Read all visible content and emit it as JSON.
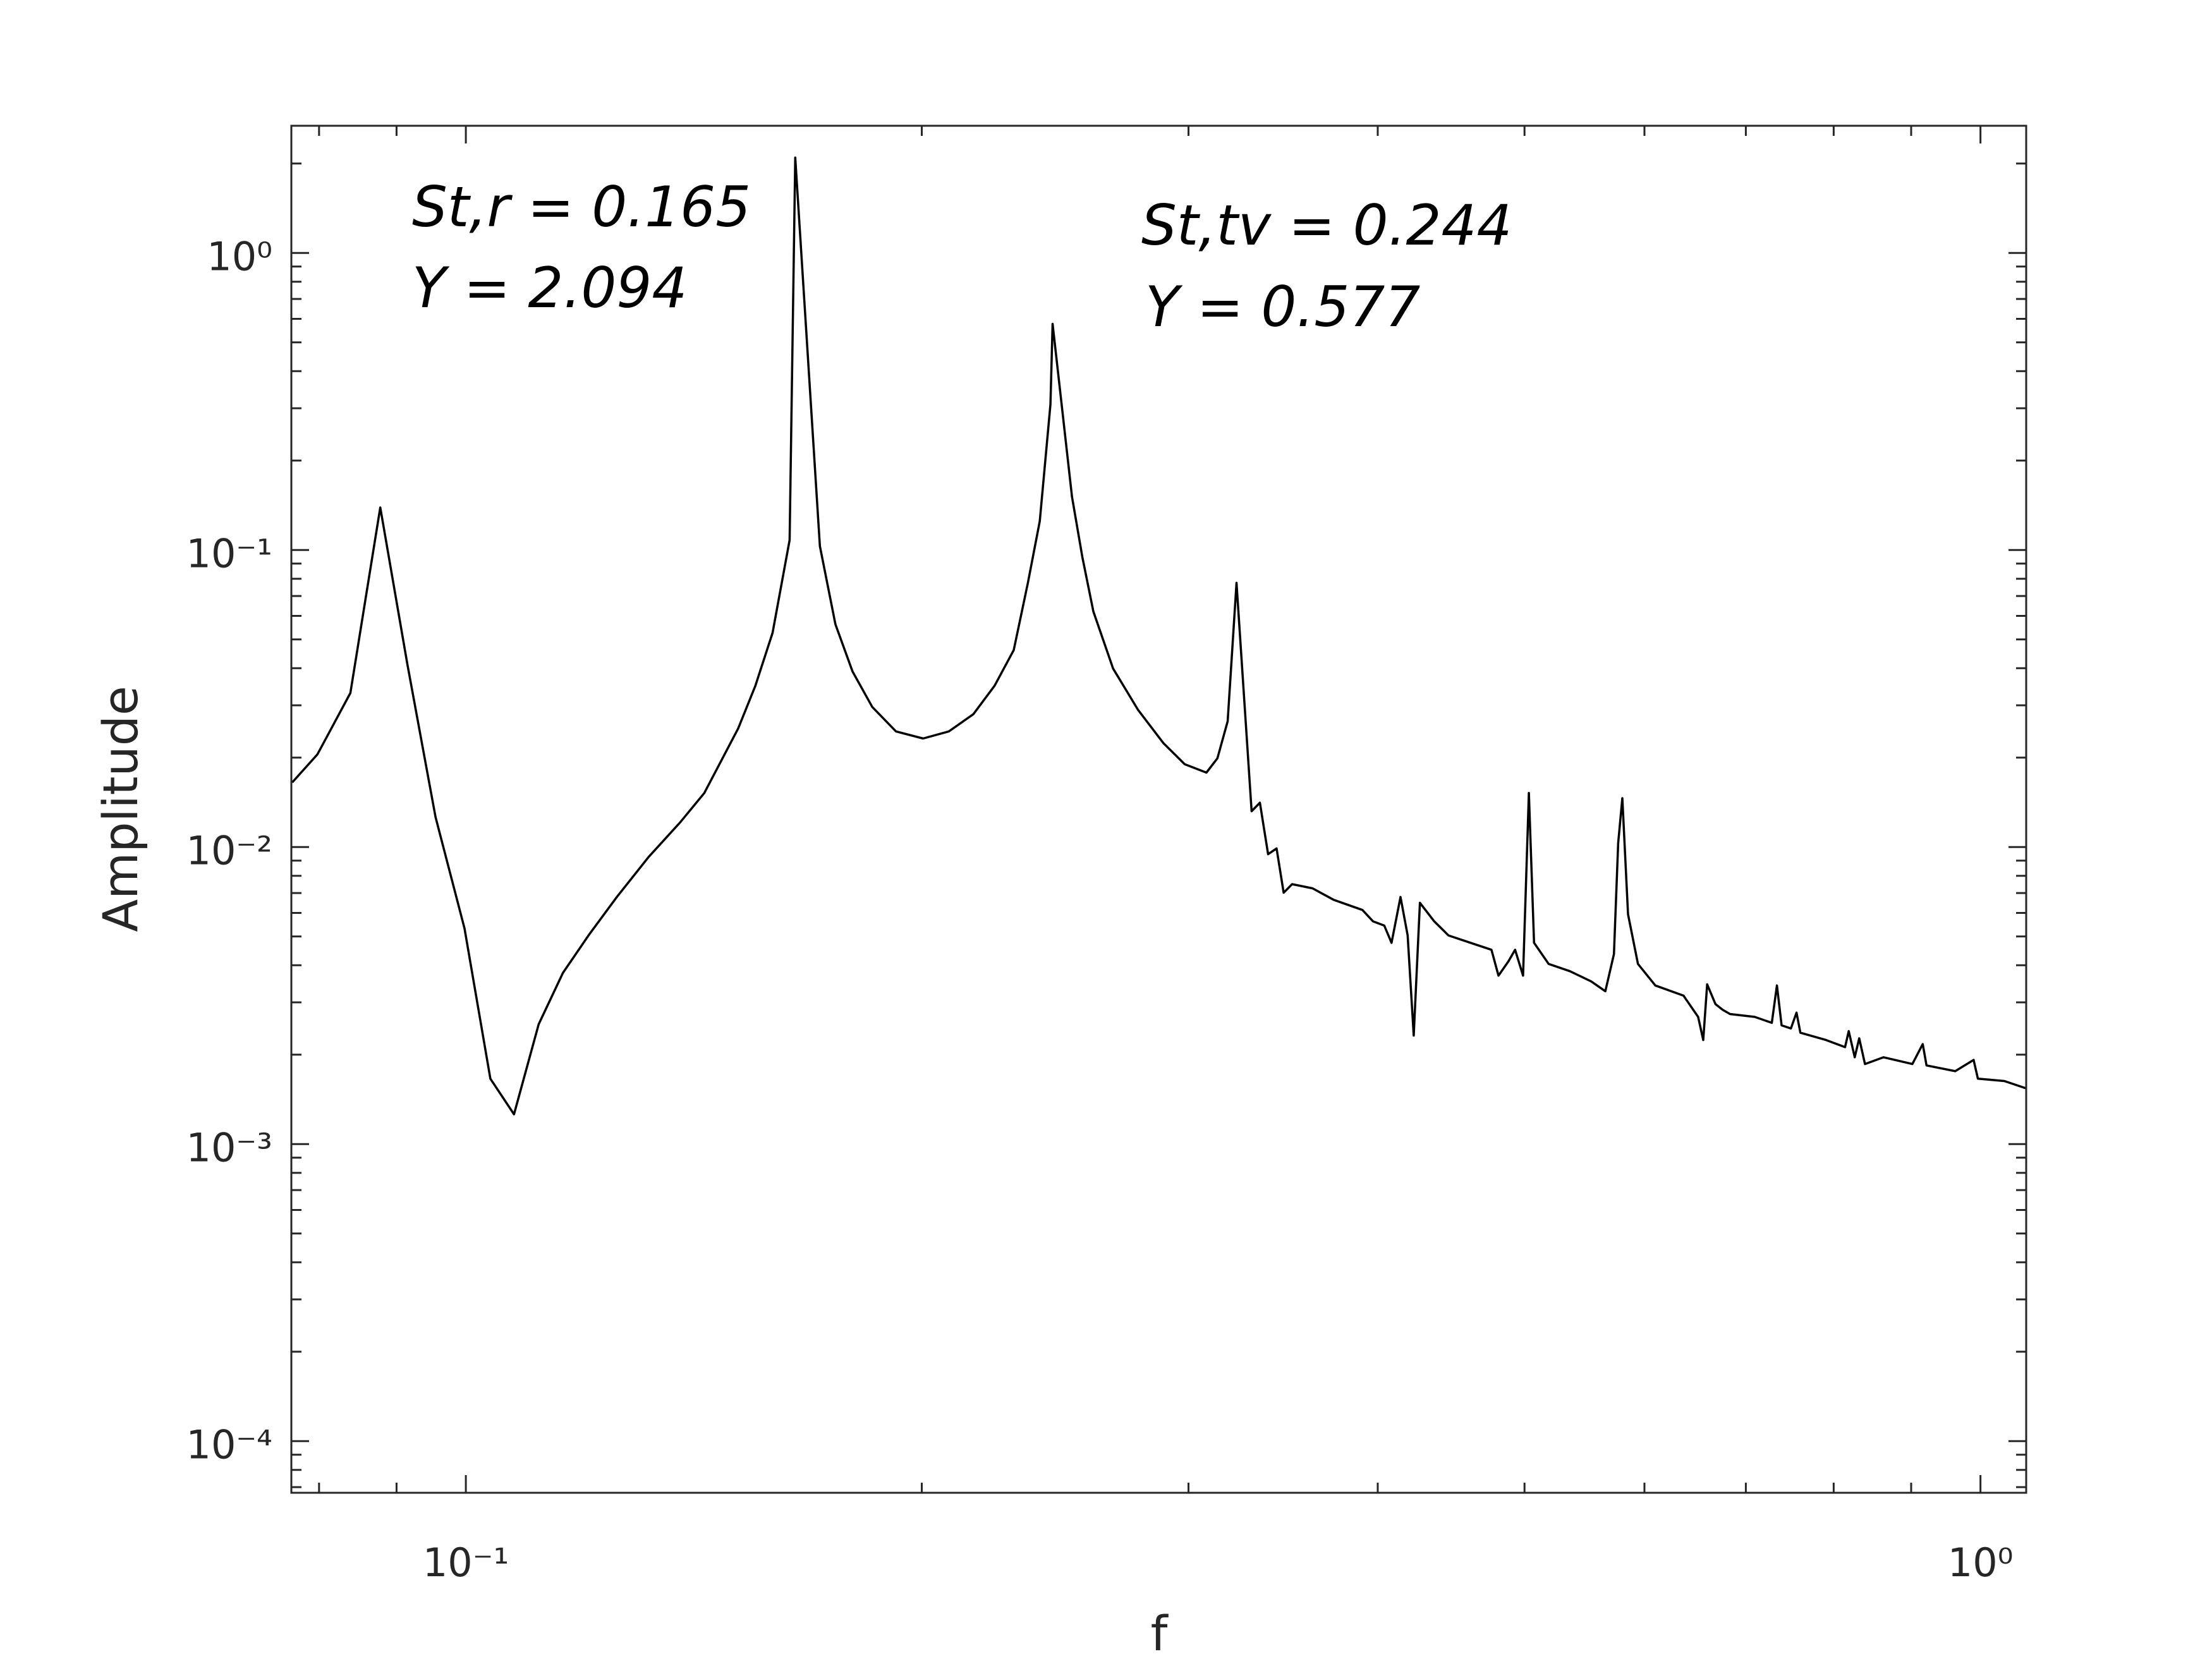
{
  "chart_data": {
    "type": "line",
    "xlabel": "f",
    "ylabel": "Amplitude",
    "annotations": [
      "St,r = 0.165",
      "Y = 2.094",
      "St,tv = 0.244",
      "Y = 0.577"
    ],
    "xscale": "log",
    "yscale": "log",
    "xlim": [
      0.0767,
      1.072
    ],
    "ylim": [
      6.7e-05,
      2.68
    ],
    "xticks": [
      {
        "value": 0.1,
        "label": "10⁻¹"
      },
      {
        "value": 1,
        "label": "10⁰"
      }
    ],
    "yticks": [
      {
        "value": 0.0001,
        "label": "10⁻⁴"
      },
      {
        "value": 0.001,
        "label": "10⁻³"
      },
      {
        "value": 0.01,
        "label": "10⁻²"
      },
      {
        "value": 0.1,
        "label": "10⁻¹"
      },
      {
        "value": 1,
        "label": "10⁰"
      }
    ],
    "grid": false,
    "color": "#000000",
    "x": [
      0.0768,
      0.0798,
      0.0839,
      0.0878,
      0.0915,
      0.0955,
      0.0998,
      0.1038,
      0.1076,
      0.1117,
      0.1159,
      0.1205,
      0.1258,
      0.132,
      0.1385,
      0.1437,
      0.1513,
      0.1553,
      0.1594,
      0.1636,
      0.165,
      0.1713,
      0.1754,
      0.18,
      0.1855,
      0.1923,
      0.2004,
      0.2084,
      0.2163,
      0.2234,
      0.23,
      0.235,
      0.2393,
      0.2432,
      0.244,
      0.2513,
      0.2553,
      0.2596,
      0.2675,
      0.2778,
      0.2887,
      0.2983,
      0.3083,
      0.3135,
      0.3184,
      0.3227,
      0.3302,
      0.3344,
      0.3386,
      0.343,
      0.3467,
      0.3512,
      0.3623,
      0.3741,
      0.3908,
      0.3972,
      0.404,
      0.4085,
      0.4141,
      0.4186,
      0.4225,
      0.4265,
      0.4359,
      0.4454,
      0.4606,
      0.4755,
      0.4806,
      0.4879,
      0.4929,
      0.4989,
      0.5033,
      0.5073,
      0.5187,
      0.5357,
      0.5533,
      0.5654,
      0.5728,
      0.5765,
      0.5802,
      0.5852,
      0.5941,
      0.61,
      0.6367,
      0.651,
      0.6561,
      0.66,
      0.6684,
      0.6759,
      0.6834,
      0.7095,
      0.7282,
      0.7339,
      0.7391,
      0.7496,
      0.7561,
      0.7605,
      0.7908,
      0.814,
      0.8185,
      0.826,
      0.8317,
      0.839,
      0.863,
      0.9017,
      0.916,
      0.9213,
      0.9624,
      0.9896,
      0.9961,
      1.037,
      1.072
    ],
    "values": [
      0.0165,
      0.0205,
      0.033,
      0.139,
      0.0412,
      0.0126,
      0.00532,
      0.00166,
      0.00126,
      0.00253,
      0.00377,
      0.00504,
      0.00679,
      0.00925,
      0.0121,
      0.0152,
      0.0251,
      0.0349,
      0.0526,
      0.108,
      2.094,
      0.103,
      0.0562,
      0.039,
      0.0296,
      0.0245,
      0.0232,
      0.0245,
      0.028,
      0.0349,
      0.046,
      0.0775,
      0.125,
      0.309,
      0.577,
      0.151,
      0.0946,
      0.0621,
      0.0399,
      0.029,
      0.0224,
      0.019,
      0.0178,
      0.0199,
      0.0265,
      0.0775,
      0.0132,
      0.0141,
      0.00946,
      0.00989,
      0.00702,
      0.0075,
      0.00726,
      0.00664,
      0.00614,
      0.00562,
      0.00544,
      0.00476,
      0.00679,
      0.00504,
      0.00232,
      0.00649,
      0.00562,
      0.00504,
      0.00476,
      0.00451,
      0.00369,
      0.00412,
      0.00451,
      0.00369,
      0.0152,
      0.00476,
      0.00404,
      0.00382,
      0.00353,
      0.00327,
      0.00436,
      0.0103,
      0.0146,
      0.00594,
      0.00404,
      0.00342,
      0.00316,
      0.00268,
      0.00224,
      0.00345,
      0.00296,
      0.00283,
      0.00274,
      0.00268,
      0.00256,
      0.00342,
      0.00251,
      0.00245,
      0.00277,
      0.00237,
      0.00224,
      0.00212,
      0.0024,
      0.00196,
      0.00227,
      0.00186,
      0.00196,
      0.00186,
      0.00217,
      0.00184,
      0.00176,
      0.00192,
      0.00166,
      0.00163,
      0.00154
    ]
  }
}
